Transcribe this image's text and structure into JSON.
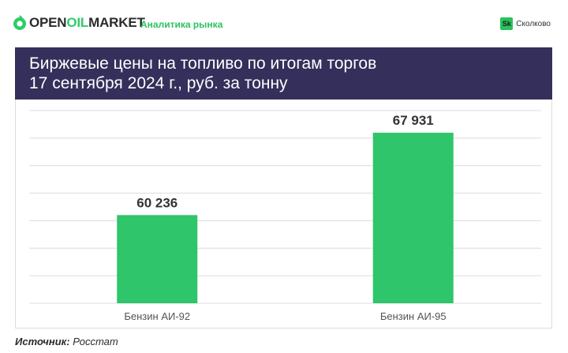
{
  "header": {
    "brand_prefix": "OPEN",
    "brand_accent": "OIL",
    "brand_suffix": "MARKET",
    "tagline": "Аналитика рынка",
    "partner_badge": "Sk",
    "partner_name": "Сколково"
  },
  "title": {
    "line1": "Биржевые цены на топливо по итогам торгов",
    "line2": "17 сентября 2024 г., руб. за тонну"
  },
  "chart_data": {
    "type": "bar",
    "categories": [
      "Бензин АИ-92",
      "Бензин АИ-95"
    ],
    "values": [
      60236,
      67931
    ],
    "data_labels": [
      "60 236",
      "67 931"
    ],
    "ylim": [
      52000,
      70000
    ],
    "grid": true,
    "y_ticks_visible": false,
    "colors": {
      "bar": "#2ec56b",
      "grid": "#dcdcdc",
      "label": "#333333"
    }
  },
  "source": {
    "label": "Источник:",
    "value": "Росстат"
  }
}
